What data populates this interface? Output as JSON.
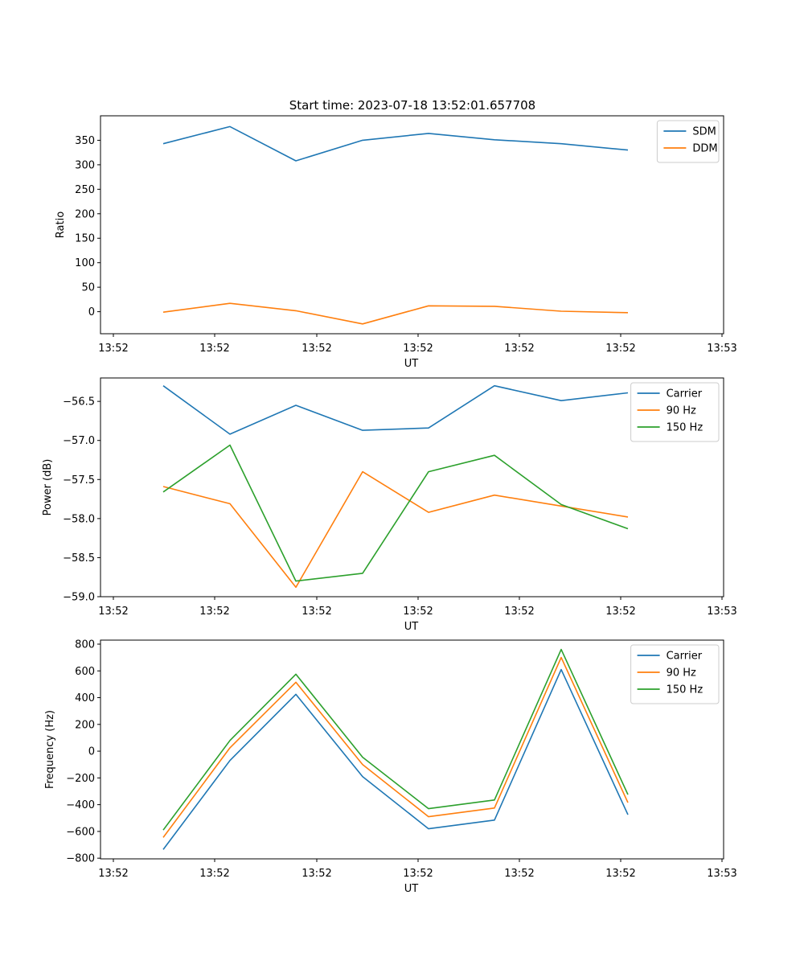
{
  "figure_title": "Start time: 2023-07-18 13:52:01.657708",
  "chart_data": [
    {
      "type": "line",
      "title": "Start time: 2023-07-18 13:52:01.657708",
      "xlabel": "UT",
      "ylabel": "Ratio",
      "x_tick_labels": [
        "13:52",
        "13:52",
        "13:52",
        "13:52",
        "13:52",
        "13:52",
        "13:53"
      ],
      "y_ticks": [
        0,
        50,
        100,
        150,
        200,
        250,
        300,
        350
      ],
      "y_tick_labels": [
        "0",
        "50",
        "100",
        "150",
        "200",
        "250",
        "300",
        "350"
      ],
      "ylim": [
        -45,
        400
      ],
      "legend_position": "top-right",
      "series": [
        {
          "name": "SDM",
          "color": "#1f77b4",
          "values": [
            343,
            378,
            308,
            350,
            364,
            351,
            343,
            330
          ]
        },
        {
          "name": "DDM",
          "color": "#ff7f0e",
          "values": [
            -1,
            17,
            2,
            -25,
            12,
            11,
            1,
            -2
          ]
        }
      ]
    },
    {
      "type": "line",
      "title": "",
      "xlabel": "UT",
      "ylabel": "Power (dB)",
      "x_tick_labels": [
        "13:52",
        "13:52",
        "13:52",
        "13:52",
        "13:52",
        "13:52",
        "13:53"
      ],
      "y_ticks": [
        -59.0,
        -58.5,
        -58.0,
        -57.5,
        -57.0,
        -56.5
      ],
      "y_tick_labels": [
        "−59.0",
        "−58.5",
        "−58.0",
        "−57.5",
        "−57.0",
        "−56.5"
      ],
      "ylim": [
        -59.0,
        -56.2
      ],
      "legend_position": "top-right",
      "series": [
        {
          "name": "Carrier",
          "color": "#1f77b4",
          "values": [
            -56.3,
            -56.92,
            -56.55,
            -56.87,
            -56.84,
            -56.3,
            -56.49,
            -56.39
          ]
        },
        {
          "name": "90 Hz",
          "color": "#ff7f0e",
          "values": [
            -57.59,
            -57.81,
            -58.88,
            -57.4,
            -57.92,
            -57.7,
            -57.84,
            -57.98
          ]
        },
        {
          "name": "150 Hz",
          "color": "#2ca02c",
          "values": [
            -57.66,
            -57.06,
            -58.8,
            -58.7,
            -57.4,
            -57.19,
            -57.82,
            -58.13
          ]
        }
      ]
    },
    {
      "type": "line",
      "title": "",
      "xlabel": "UT",
      "ylabel": "Frequency (Hz)",
      "x_tick_labels": [
        "13:52",
        "13:52",
        "13:52",
        "13:52",
        "13:52",
        "13:52",
        "13:53"
      ],
      "y_ticks": [
        -800,
        -600,
        -400,
        -200,
        0,
        200,
        400,
        600,
        800
      ],
      "y_tick_labels": [
        "−800",
        "−600",
        "−400",
        "−200",
        "0",
        "200",
        "400",
        "600",
        "800"
      ],
      "ylim": [
        -805,
        830
      ],
      "legend_position": "top-right",
      "series": [
        {
          "name": "Carrier",
          "color": "#1f77b4",
          "values": [
            -735,
            -70,
            425,
            -190,
            -580,
            -515,
            610,
            -475
          ]
        },
        {
          "name": "90 Hz",
          "color": "#ff7f0e",
          "values": [
            -645,
            25,
            515,
            -100,
            -490,
            -425,
            700,
            -385
          ]
        },
        {
          "name": "150 Hz",
          "color": "#2ca02c",
          "values": [
            -590,
            80,
            575,
            -45,
            -430,
            -365,
            760,
            -325
          ]
        }
      ]
    }
  ]
}
